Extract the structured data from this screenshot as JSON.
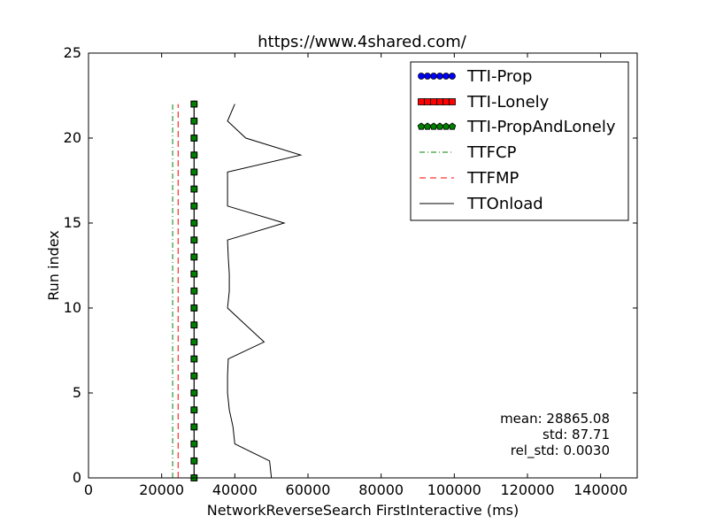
{
  "chart_data": {
    "type": "line",
    "title": "https://www.4shared.com/",
    "xlabel": "NetworkReverseSearch FirstInteractive (ms)",
    "ylabel": "Run index",
    "xlim": [
      0,
      150000
    ],
    "ylim": [
      0,
      25
    ],
    "x_ticks": [
      "0",
      "20000",
      "40000",
      "60000",
      "80000",
      "100000",
      "120000",
      "140000"
    ],
    "y_ticks": [
      "0",
      "5",
      "10",
      "15",
      "20",
      "25"
    ],
    "grid": false,
    "legend_position": "top-right",
    "series": [
      {
        "name": "TTI-Prop",
        "color": "#0000ff",
        "marker": "circle",
        "style": "marker-line",
        "x_constant": 28865
      },
      {
        "name": "TTI-Lonely",
        "color": "#ff0000",
        "marker": "square",
        "style": "marker-line",
        "x_constant": 28865
      },
      {
        "name": "TTI-PropAndLonely",
        "color": "#008000",
        "marker": "pentagon",
        "style": "marker-line",
        "x_constant": 28865
      },
      {
        "name": "TTFCP",
        "color": "#008000",
        "style": "dashdot",
        "x_constant": 23000
      },
      {
        "name": "TTFMP",
        "color": "#ff0000",
        "style": "dashed",
        "x_constant": 24500
      },
      {
        "name": "TTOnload",
        "color": "#000000",
        "style": "solid",
        "points": [
          [
            50000,
            0
          ],
          [
            49500,
            1
          ],
          [
            40000,
            2
          ],
          [
            39500,
            3
          ],
          [
            38500,
            4
          ],
          [
            38000,
            5
          ],
          [
            38000,
            6
          ],
          [
            38200,
            7
          ],
          [
            48000,
            8
          ],
          [
            43000,
            9
          ],
          [
            38000,
            10
          ],
          [
            38500,
            11
          ],
          [
            38500,
            12
          ],
          [
            38200,
            13
          ],
          [
            38000,
            14
          ],
          [
            53500,
            15
          ],
          [
            38000,
            16
          ],
          [
            38000,
            17
          ],
          [
            38000,
            18
          ],
          [
            58000,
            19
          ],
          [
            43000,
            20
          ],
          [
            38000,
            21
          ],
          [
            40000,
            22
          ]
        ]
      }
    ],
    "run_count": 23,
    "stats": {
      "mean": "mean: 28865.08",
      "std": "std: 87.71",
      "rel_std": "rel_std: 0.0030"
    }
  }
}
